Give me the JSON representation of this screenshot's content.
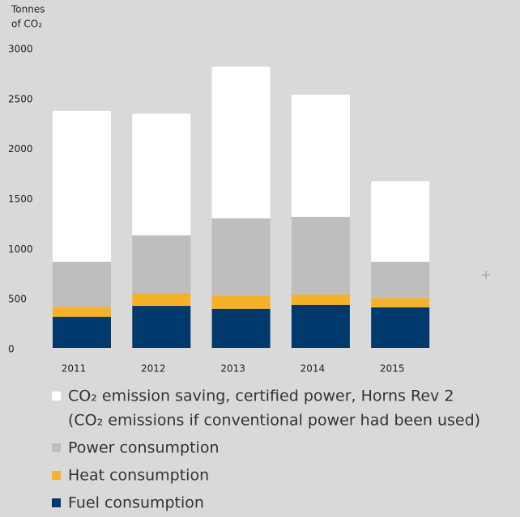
{
  "chart_data": {
    "type": "stacked_bar",
    "y_label": [
      "Tonnes",
      "of CO₂"
    ],
    "categories": [
      "2011",
      "2012",
      "2013",
      "2014",
      "2015"
    ],
    "series": [
      {
        "name": "CO₂ emission saving, certified power, Horns Rev 2",
        "note": "(CO₂ emissions if conventional power had been used)",
        "color": "#ffffff",
        "values": [
          1510,
          1215,
          1515,
          1220,
          805
        ]
      },
      {
        "name": "Power consumption",
        "color": "#bebebe",
        "values": [
          450,
          575,
          775,
          775,
          360
        ]
      },
      {
        "name": "Heat consumption",
        "color": "#f6b12a",
        "values": [
          100,
          130,
          130,
          105,
          95
        ]
      },
      {
        "name": "Fuel consumption",
        "color": "#003a6c",
        "values": [
          310,
          420,
          390,
          430,
          405
        ]
      }
    ],
    "ylim": [
      0,
      3000
    ],
    "yticks": [
      0,
      500,
      1000,
      1500,
      2000,
      2500,
      3000
    ],
    "grid": false
  }
}
